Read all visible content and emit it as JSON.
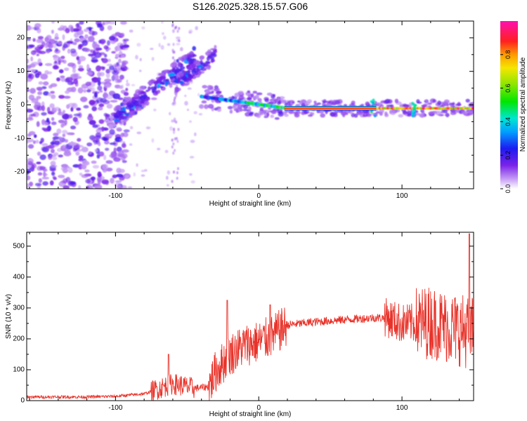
{
  "title": "S126.2025.328.15.57.G06",
  "chart_data": [
    {
      "type": "heatmap",
      "name": "spectrogram",
      "xlabel": "Height of straight line (km)",
      "ylabel": "Frequency (Hz)",
      "xlim": [
        -162,
        150
      ],
      "ylim": [
        -25,
        25
      ],
      "xticks": [
        -100,
        0,
        100
      ],
      "yticks": [
        -20,
        -10,
        0,
        10,
        20
      ],
      "colorbar": {
        "label": "Normalized spectral amplitude",
        "range": [
          0,
          1
        ],
        "ticks": [
          0.0,
          0.2,
          0.4,
          0.6,
          0.8
        ],
        "tick_labels": [
          "0.0",
          "0.2",
          "0.4",
          "0.6",
          "0.8"
        ]
      },
      "features": {
        "noise_region_x": [
          -162,
          -100
        ],
        "rising_band_1": {
          "x": [
            -100,
            -45
          ],
          "freq": [
            -4,
            14
          ],
          "amplitude": 0.25
        },
        "rising_band_2": {
          "x": [
            -58,
            -30
          ],
          "freq": [
            6,
            15
          ],
          "amplitude": 0.2
        },
        "carrier": {
          "x": [
            -40,
            150
          ],
          "freq_start": 2.5,
          "freq_end": -1,
          "amplitude_start": 0.3,
          "amplitude_end": 1.0
        }
      }
    },
    {
      "type": "line",
      "name": "snr",
      "xlabel": "Height of straight line (km)",
      "ylabel": "SNR (10 * v/v)",
      "xlim": [
        -162,
        150
      ],
      "ylim": [
        0,
        545
      ],
      "xticks": [
        -100,
        0,
        100
      ],
      "yticks": [
        0,
        100,
        200,
        300,
        400,
        500
      ],
      "color": "#e8332a",
      "series": [
        {
          "name": "SNR",
          "x": [
            -162,
            -120,
            -100,
            -80,
            -60,
            -45,
            -35,
            -30,
            -20,
            -10,
            0,
            10,
            20,
            40,
            60,
            80,
            88,
            90,
            100,
            110,
            120,
            130,
            140,
            150
          ],
          "y": [
            12,
            12,
            14,
            22,
            55,
            40,
            45,
            95,
            150,
            180,
            190,
            210,
            245,
            255,
            262,
            268,
            268,
            268,
            250,
            250,
            255,
            240,
            230,
            220
          ]
        }
      ],
      "peaks": [
        {
          "x": -63,
          "y": 150
        },
        {
          "x": -22,
          "y": 325
        },
        {
          "x": 8,
          "y": 310
        },
        {
          "x": 147,
          "y": 540
        }
      ]
    }
  ]
}
